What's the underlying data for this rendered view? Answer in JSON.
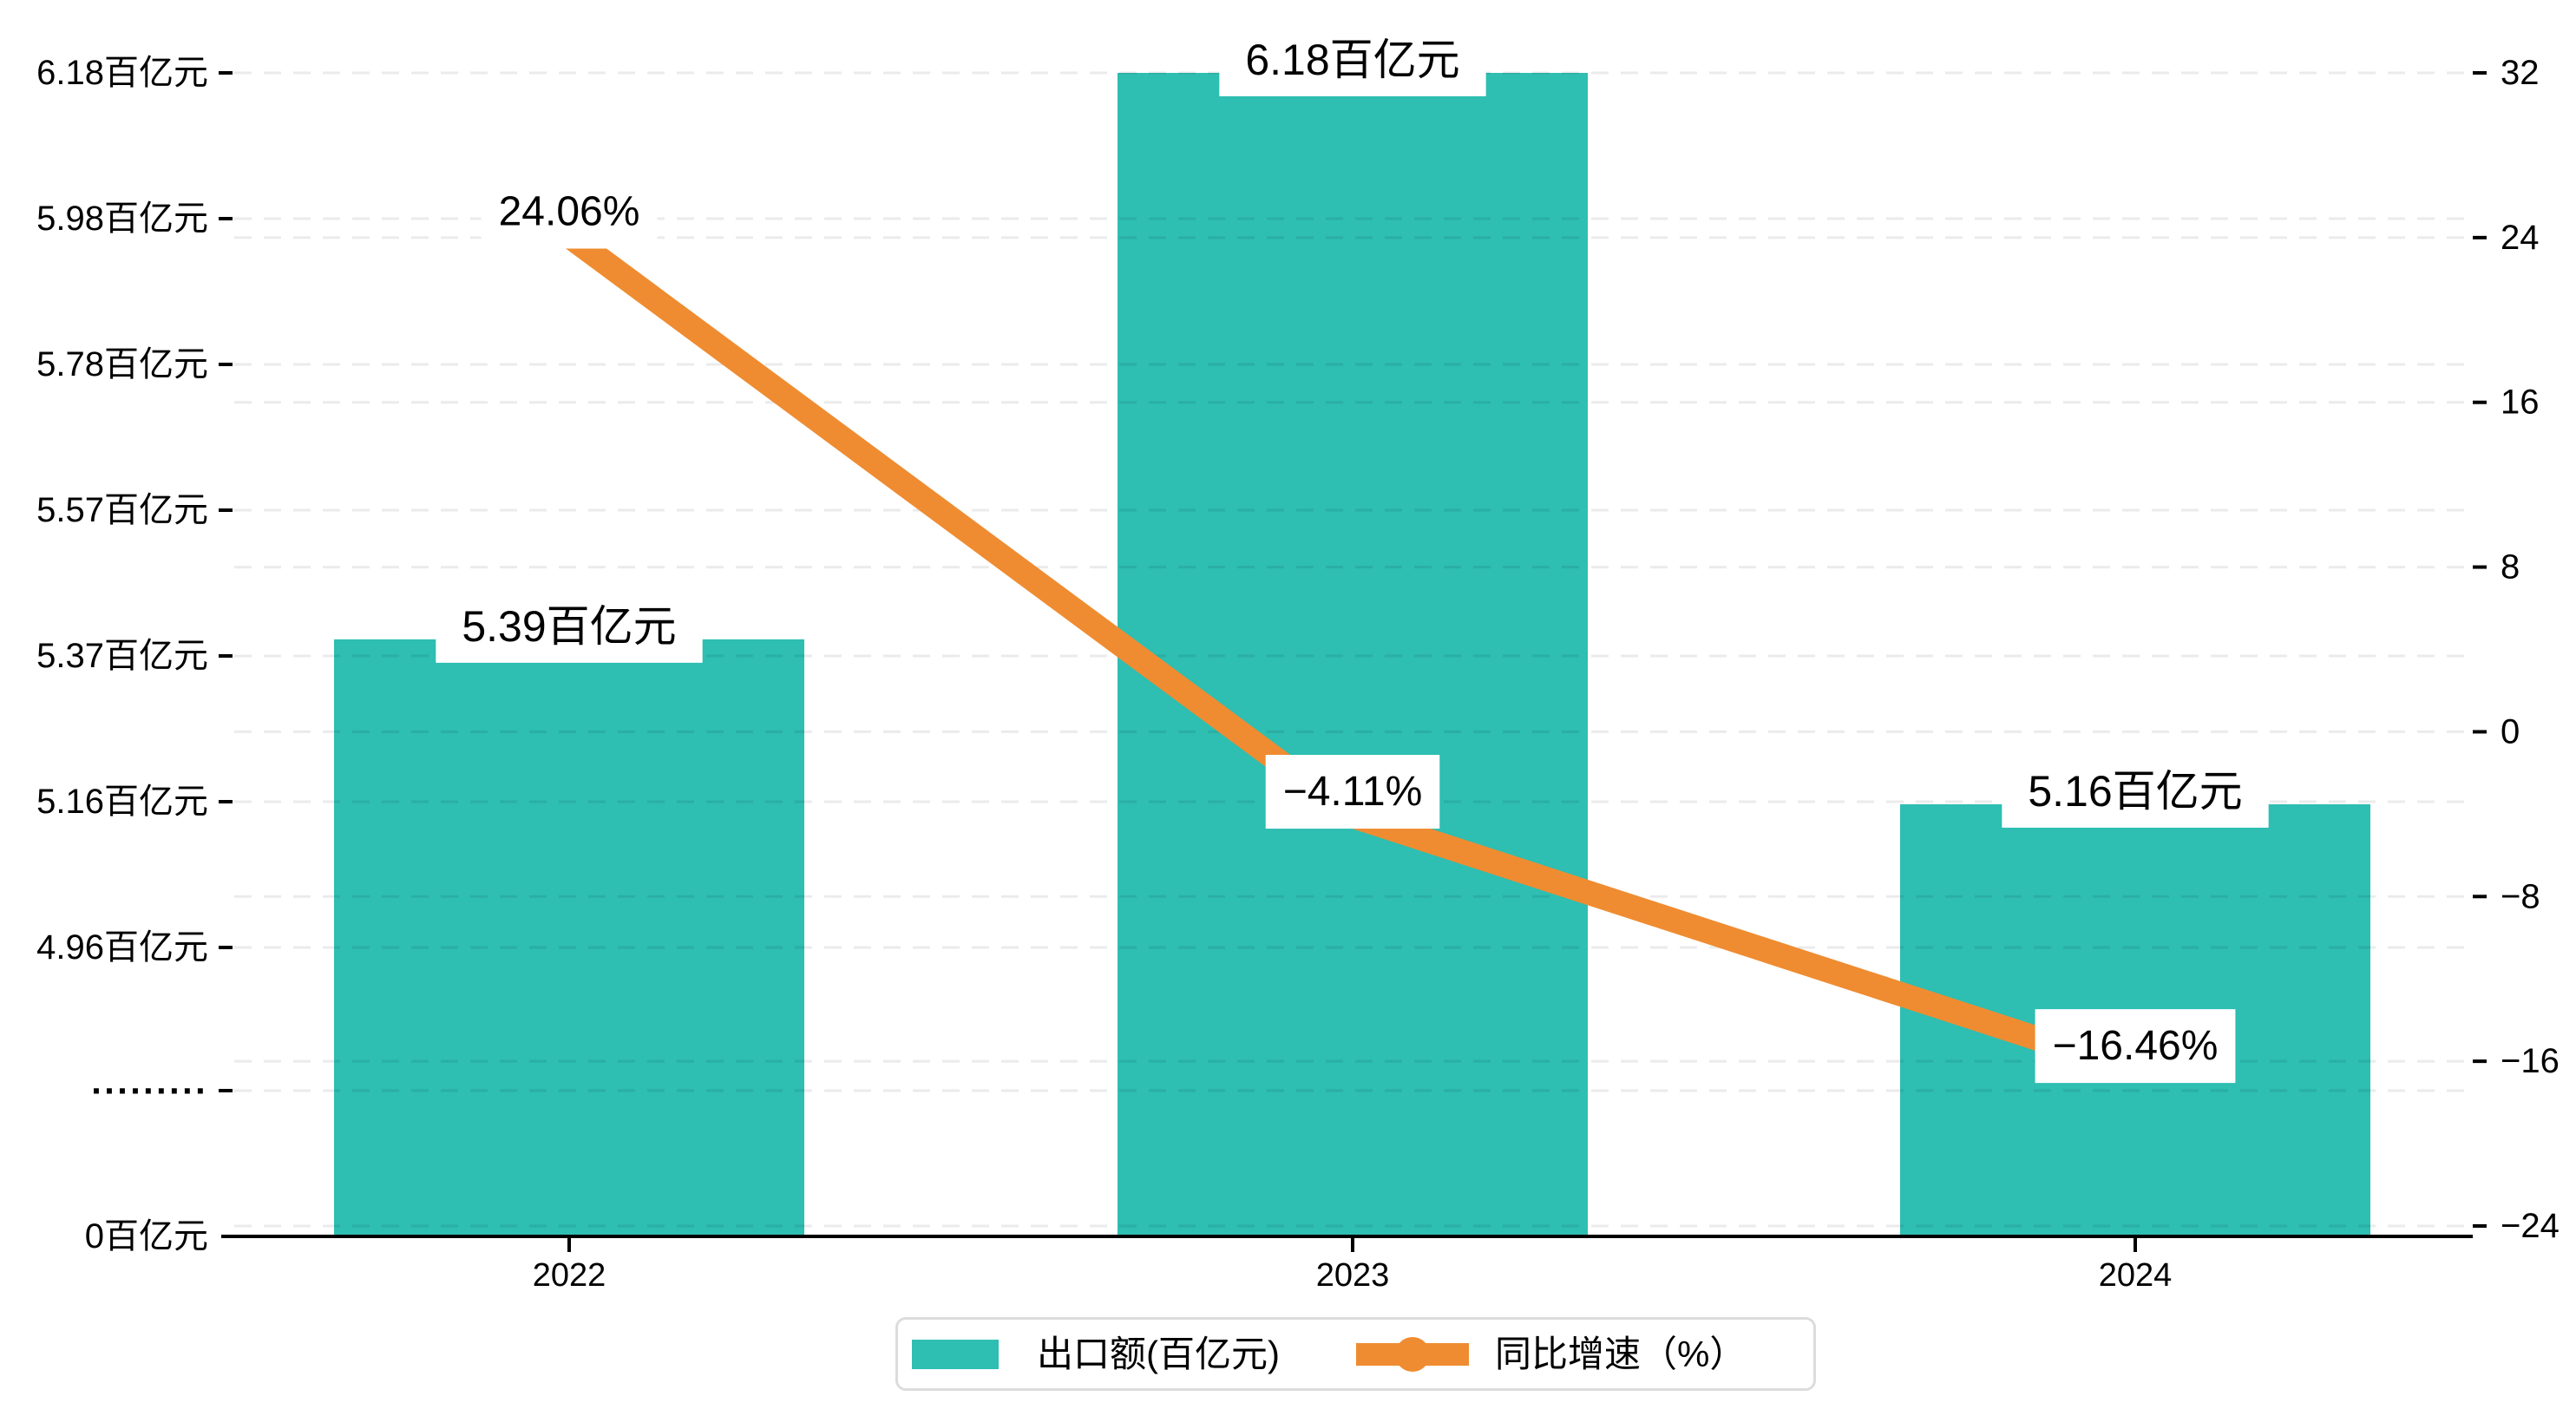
{
  "chart_data": {
    "type": "bar",
    "categories": [
      "2022",
      "2023",
      "2024"
    ],
    "series": [
      {
        "name": "出口额(百亿元)",
        "type": "bar",
        "values": [
          5.39,
          6.18,
          5.16
        ],
        "data_labels": [
          "5.39百亿元",
          "6.18百亿元",
          "5.16百亿元"
        ],
        "color": "#2EBEB2"
      },
      {
        "name": "同比增速（%）",
        "type": "line",
        "values": [
          24.06,
          -4.11,
          -16.46
        ],
        "data_labels": [
          "24.06%",
          "−4.11%",
          "−16.46%"
        ],
        "color": "#EF8C31"
      }
    ],
    "left_axis": {
      "unit": "百亿元",
      "tick_labels": [
        "6.18百亿元",
        "5.98百亿元",
        "5.78百亿元",
        "5.57百亿元",
        "5.37百亿元",
        "5.16百亿元",
        "4.96百亿元",
        "·········",
        "0百亿元"
      ],
      "broken_axis": true
    },
    "right_axis": {
      "min": -24,
      "max": 32,
      "step": 8,
      "tick_labels": [
        "32",
        "24",
        "16",
        "8",
        "0",
        "−8",
        "−16",
        "−24"
      ]
    },
    "grid": true,
    "legend_position": "bottom"
  },
  "colors": {
    "bar": "#2EBEB2",
    "line": "#EF8C31",
    "gridline": "rgba(0,0,0,0.08)",
    "axis": "#000000",
    "text": "#000000",
    "label_bg": "#ffffff",
    "legend_border": "#dcdcdc"
  }
}
